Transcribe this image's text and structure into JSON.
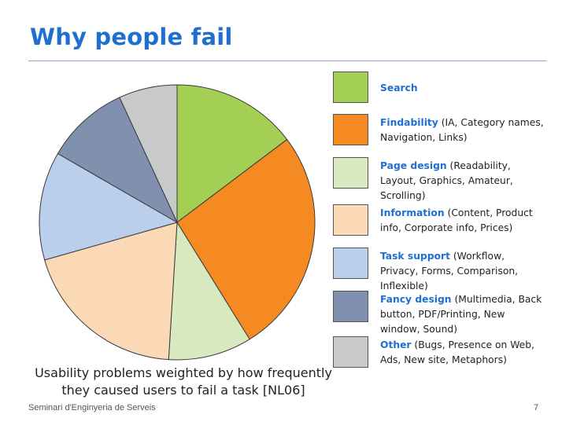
{
  "slide": {
    "title": "Why people fail",
    "caption": "Usability problems weighted by how frequently they caused users to fail a task [NL06]",
    "footer": "Seminari d'Enginyeria de Serveis",
    "page_number": "7"
  },
  "chart_data": {
    "type": "pie",
    "start_angle_deg": 0,
    "direction": "clockwise",
    "slices": [
      {
        "name": "Search",
        "detail": "",
        "value": 15,
        "color": "#a3cf55"
      },
      {
        "name": "Findability",
        "detail": "(IA, Category names, Navigation, Links)",
        "value": 27,
        "color": "#f58a23"
      },
      {
        "name": "Page design",
        "detail": "(Readability, Layout, Graphics, Amateur, Scrolling)",
        "value": 10,
        "color": "#d8e8bf"
      },
      {
        "name": "Information",
        "detail": "(Content, Product info, Corporate info, Prices)",
        "value": 20,
        "color": "#fbd8b6"
      },
      {
        "name": "Task support",
        "detail": "(Workflow, Privacy, Forms, Comparison, Inflexible)",
        "value": 13,
        "color": "#b9cfeb"
      },
      {
        "name": "Fancy design",
        "detail": "(Multimedia, Back button, PDF/Printing, New window, Sound)",
        "value": 10,
        "color": "#8091b0"
      },
      {
        "name": "Other",
        "detail": "(Bugs, Presence on Web, Ads, New site, Metaphors)",
        "value": 7,
        "color": "#c8c9cb"
      }
    ]
  }
}
